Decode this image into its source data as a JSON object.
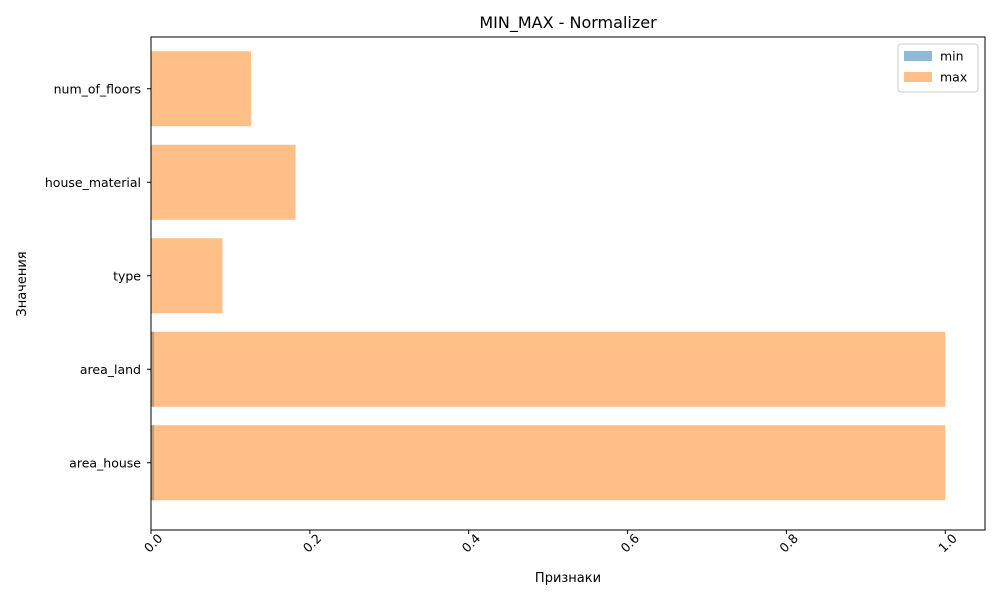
{
  "chart_data": {
    "type": "bar",
    "orientation": "horizontal",
    "title": "MIN_MAX - Normalizer",
    "xlabel": "Признаки",
    "ylabel": "Значения",
    "categories": [
      "num_of_floors",
      "house_material",
      "type",
      "area_land",
      "area_house"
    ],
    "series": [
      {
        "name": "min",
        "color": "#1f77b4",
        "opacity": 0.5,
        "values": [
          0.0,
          0.0,
          0.0,
          0.004,
          0.004
        ]
      },
      {
        "name": "max",
        "color": "#ff7f0e",
        "opacity": 0.5,
        "values": [
          0.126,
          0.182,
          0.09,
          1.0,
          1.0
        ]
      }
    ],
    "xlim": [
      0.0,
      1.05
    ],
    "xticks": [
      0.0,
      0.2,
      0.4,
      0.6,
      0.8,
      1.0
    ],
    "xtick_labels": [
      "0.0",
      "0.2",
      "0.4",
      "0.6",
      "0.8",
      "1.0"
    ],
    "xtick_rotation": 45,
    "grid": false,
    "legend_position": "top-right"
  }
}
